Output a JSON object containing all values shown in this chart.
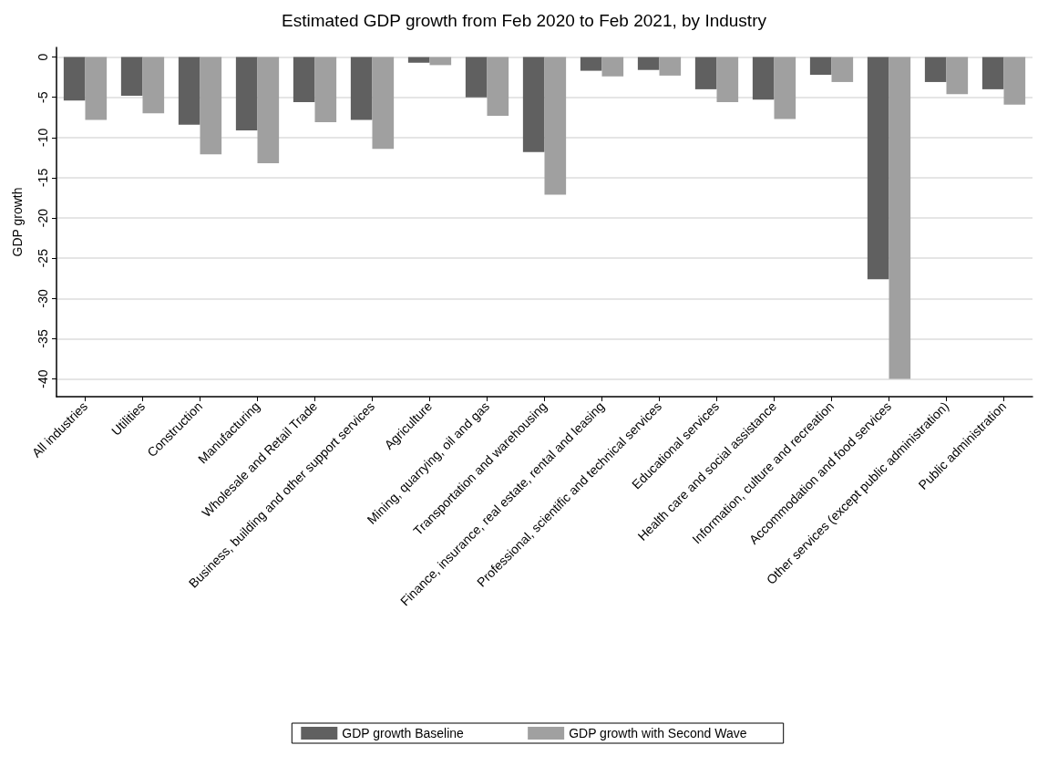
{
  "chart_data": {
    "type": "bar",
    "title": "Estimated GDP growth from Feb 2020 to Feb 2021, by Industry",
    "ylabel": "GDP growth",
    "categories": [
      "All industries",
      "Utilities",
      "Construction",
      "Manufacturing",
      "Wholesale and Retail Trade",
      "Business, building and other support services",
      "Agriculture",
      "Mining, quarrying, oil and gas",
      "Transportation and warehousing",
      "Finance, insurance, real estate, rental and leasing",
      "Professional, scientific and technical services",
      "Educational services",
      "Health care and social assistance",
      "Information, culture and recreation",
      "Accommodation and food services",
      "Other services (except public administration)",
      "Public administration"
    ],
    "series": [
      {
        "name": "GDP growth Baseline",
        "color": "#606060",
        "values": [
          -5.4,
          -4.8,
          -8.4,
          -9.1,
          -5.6,
          -7.8,
          -0.7,
          -5.0,
          -11.8,
          -1.7,
          -1.6,
          -4.0,
          -5.3,
          -2.2,
          -27.6,
          -3.1,
          -4.0
        ]
      },
      {
        "name": "GDP growth with Second Wave",
        "color": "#a0a0a0",
        "values": [
          -7.8,
          -7.0,
          -12.1,
          -13.2,
          -8.1,
          -11.4,
          -1.0,
          -7.3,
          -17.1,
          -2.4,
          -2.3,
          -5.6,
          -7.7,
          -3.1,
          -40.0,
          -4.6,
          -5.9
        ]
      }
    ],
    "ylim": [
      -42.2,
      1.2
    ],
    "yticks": [
      0,
      -5,
      -10,
      -15,
      -20,
      -25,
      -30,
      -35,
      -40
    ],
    "grid": "y",
    "legend": "bottom"
  }
}
